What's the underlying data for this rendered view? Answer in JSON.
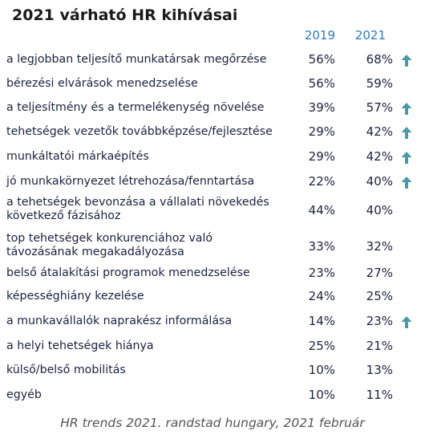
{
  "chart_data": {
    "type": "table",
    "title": "2021 várható HR kihívásai",
    "columns": [
      "2019",
      "2021"
    ],
    "rows": [
      {
        "label": "a legjobban teljesítő munkatársak megőrzése",
        "v2019": "56%",
        "v2021": "68%",
        "up": true
      },
      {
        "label": "bérezési elvárások menedzselése",
        "v2019": "56%",
        "v2021": "59%",
        "up": false
      },
      {
        "label": "a teljesítmény és a termelékenység növelése",
        "v2019": "39%",
        "v2021": "57%",
        "up": true
      },
      {
        "label": "tehetségek vezetők továbbképzése/fejlesztése",
        "v2019": "29%",
        "v2021": "42%",
        "up": true
      },
      {
        "label": "munkáltatói márkaépítés",
        "v2019": "29%",
        "v2021": "42%",
        "up": true
      },
      {
        "label": "jó munkakörnyezet létrehozása/fenntartása",
        "v2019": "22%",
        "v2021": "40%",
        "up": true
      },
      {
        "label": "a tehetségek bevonzása a vállalati növekedés következő fázisához",
        "v2019": "44%",
        "v2021": "40%",
        "up": false
      },
      {
        "label": "top tehetségek konkurenciához való távozásának megakadályozása",
        "v2019": "33%",
        "v2021": "32%",
        "up": false
      },
      {
        "label": "belső átalakítási programok menedzselése",
        "v2019": "23%",
        "v2021": "27%",
        "up": false
      },
      {
        "label": "képességhiány kezelése",
        "v2019": "24%",
        "v2021": "25%",
        "up": false
      },
      {
        "label": "a munkavállalók naprakész informálása",
        "v2019": "14%",
        "v2021": "23%",
        "up": true
      },
      {
        "label": "a helyi tehetségek hiánya",
        "v2019": "25%",
        "v2021": "21%",
        "up": false
      },
      {
        "label": "külső/belső mobilitás",
        "v2019": "10%",
        "v2021": "13%",
        "up": false
      },
      {
        "label": "egyéb",
        "v2019": "10%",
        "v2021": "11%",
        "up": false
      }
    ],
    "source": "HR trends 2021. randstad hungary, 2021 február"
  },
  "colors": {
    "header": "#2e7bc0",
    "arrow": "#4a9aa6",
    "text": "#1a2240"
  },
  "icons": {
    "increase": "arrow-up-icon"
  }
}
